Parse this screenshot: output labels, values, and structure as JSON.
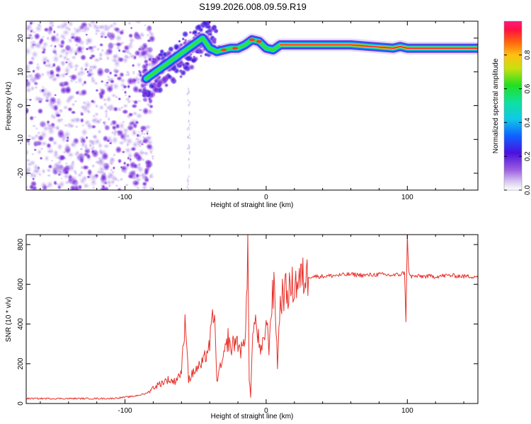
{
  "page": {
    "title": "S199.2026.008.09.59.R19"
  },
  "chart_data": [
    {
      "type": "heatmap",
      "title": "S199.2026.008.09.59.R19",
      "xlabel": "Height of straight line (km)",
      "ylabel": "Frequency (Hz)",
      "xlim": [
        -170,
        150
      ],
      "ylim": [
        -25,
        25
      ],
      "xticks": [
        -100,
        0,
        100
      ],
      "xtick_labels": [
        "-100",
        "0",
        "100"
      ],
      "yticks": [
        -20,
        -10,
        0,
        10,
        20
      ],
      "ytick_labels": [
        "-20",
        "-10",
        "0",
        "10",
        "20"
      ],
      "ridge": {
        "x": [
          -85,
          -75,
          -65,
          -55,
          -45,
          -40,
          -35,
          -30,
          -25,
          -20,
          -15,
          -10,
          -5,
          0,
          5,
          10,
          30,
          60,
          90,
          95,
          100,
          150
        ],
        "y": [
          8,
          11,
          14,
          17,
          20,
          17,
          16,
          16.5,
          17,
          17,
          18,
          19.5,
          19,
          17,
          16.5,
          18,
          18,
          18,
          17,
          17.5,
          17,
          17
        ]
      },
      "colorbar": {
        "label": "Normalized spectral amplitude",
        "range": [
          0,
          1
        ],
        "ticks": [
          0.0,
          0.2,
          0.4,
          0.6,
          0.8
        ],
        "tick_labels": [
          "0.0",
          "0.2",
          "0.4",
          "0.6",
          "0.8"
        ]
      }
    },
    {
      "type": "line",
      "xlabel": "Height of straight line (km)",
      "ylabel": "SNR (10 * v/v)",
      "xlim": [
        -170,
        150
      ],
      "ylim": [
        0,
        850
      ],
      "xticks": [
        -100,
        0,
        100
      ],
      "xtick_labels": [
        "-100",
        "0",
        "100"
      ],
      "yticks": [
        0,
        200,
        400,
        600,
        800
      ],
      "ytick_labels": [
        "0",
        "200",
        "400",
        "600",
        "800"
      ],
      "series": [
        {
          "name": "SNR",
          "color": "#e8302a",
          "x": [
            -170,
            -150,
            -130,
            -110,
            -95,
            -85,
            -80,
            -75,
            -70,
            -65,
            -60,
            -57,
            -55,
            -50,
            -45,
            -40,
            -37,
            -35,
            -30,
            -27,
            -25,
            -22,
            -20,
            -17,
            -15,
            -13,
            -12,
            -11,
            -10,
            -8,
            -6,
            -4,
            -2,
            0,
            2,
            4,
            6,
            8,
            10,
            12,
            15,
            20,
            25,
            30,
            35,
            40,
            50,
            60,
            70,
            80,
            90,
            95,
            98,
            99,
            100,
            101,
            102,
            105,
            110,
            120,
            130,
            140,
            150
          ],
          "y": [
            25,
            25,
            25,
            25,
            35,
            50,
            80,
            100,
            120,
            110,
            160,
            440,
            120,
            170,
            200,
            300,
            480,
            120,
            230,
            330,
            270,
            320,
            300,
            260,
            330,
            780,
            120,
            30,
            300,
            420,
            350,
            240,
            300,
            420,
            290,
            520,
            580,
            200,
            510,
            560,
            560,
            600,
            630,
            640,
            640,
            640,
            645,
            650,
            645,
            650,
            645,
            650,
            660,
            420,
            850,
            660,
            640,
            640,
            640,
            640,
            645,
            640,
            640
          ]
        }
      ]
    }
  ]
}
